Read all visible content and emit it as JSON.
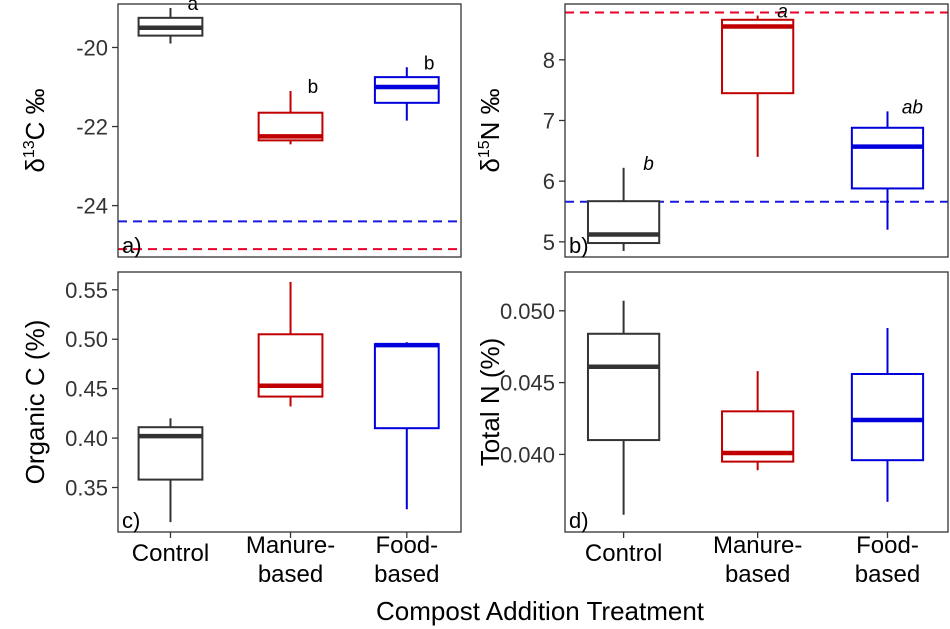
{
  "colors": {
    "Control": "#333333",
    "Manure-based": "#c00000",
    "Food-based": "#0000dd",
    "ref_red": "#e8002a",
    "ref_blue": "#1a1adf"
  },
  "x_axis": {
    "title": "Compost Addition Treatment",
    "categories": [
      {
        "key": "Control",
        "lines": [
          "Control"
        ]
      },
      {
        "key": "Manure-based",
        "lines": [
          "Manure-",
          "based"
        ]
      },
      {
        "key": "Food-based",
        "lines": [
          "Food-",
          "based"
        ]
      }
    ]
  },
  "chart_data": [
    {
      "type": "box",
      "panel": "a)",
      "ylabel": {
        "delta": "δ",
        "sup": "13",
        "element": "C",
        "unit": "‰"
      },
      "ylim": [
        -25.3,
        -18.9
      ],
      "yticks": [
        -24,
        -22,
        -20
      ],
      "reference_lines": [
        {
          "color": "ref_blue",
          "y": -24.4
        },
        {
          "color": "ref_red",
          "y": -25.1
        }
      ],
      "sig_italic": false,
      "boxes": [
        {
          "category": "Control",
          "min": -19.9,
          "q1": -19.7,
          "median": -19.5,
          "q3": -19.25,
          "max": -19.0,
          "sig": "a"
        },
        {
          "category": "Manure-based",
          "min": -22.45,
          "q1": -22.35,
          "median": -22.25,
          "q3": -21.65,
          "max": -21.1,
          "sig": "b"
        },
        {
          "category": "Food-based",
          "min": -21.85,
          "q1": -21.4,
          "median": -21.0,
          "q3": -20.75,
          "max": -20.5,
          "sig": "b"
        }
      ]
    },
    {
      "type": "box",
      "panel": "b)",
      "ylabel": {
        "delta": "δ",
        "sup": "15",
        "element": "N",
        "unit": "‰"
      },
      "ylim": [
        4.75,
        8.92
      ],
      "yticks": [
        5,
        6,
        7,
        8
      ],
      "reference_lines": [
        {
          "color": "ref_red",
          "y": 8.78
        },
        {
          "color": "ref_blue",
          "y": 5.66
        }
      ],
      "sig_italic": true,
      "boxes": [
        {
          "category": "Control",
          "min": 4.85,
          "q1": 4.98,
          "median": 5.12,
          "q3": 5.67,
          "max": 6.22,
          "sig": "b"
        },
        {
          "category": "Manure-based",
          "min": 6.4,
          "q1": 7.45,
          "median": 8.55,
          "q3": 8.66,
          "max": 8.73,
          "sig": "a"
        },
        {
          "category": "Food-based",
          "min": 5.2,
          "q1": 5.88,
          "median": 6.57,
          "q3": 6.88,
          "max": 7.15,
          "sig": "ab"
        }
      ]
    },
    {
      "type": "box",
      "panel": "c)",
      "ylabel": {
        "text": "Organic C (%)"
      },
      "ylim": [
        0.305,
        0.568
      ],
      "yticks": [
        0.35,
        0.4,
        0.45,
        0.5,
        0.55
      ],
      "tick_format": "0.00",
      "boxes": [
        {
          "category": "Control",
          "min": 0.315,
          "q1": 0.358,
          "median": 0.402,
          "q3": 0.411,
          "max": 0.42
        },
        {
          "category": "Manure-based",
          "min": 0.432,
          "q1": 0.442,
          "median": 0.453,
          "q3": 0.505,
          "max": 0.558
        },
        {
          "category": "Food-based",
          "min": 0.328,
          "q1": 0.41,
          "median": 0.494,
          "q3": 0.495,
          "max": 0.497
        }
      ]
    },
    {
      "type": "box",
      "panel": "d)",
      "ylabel": {
        "text": "Total N (%)"
      },
      "ylim": [
        0.0346,
        0.0527
      ],
      "yticks": [
        0.04,
        0.045,
        0.05
      ],
      "tick_format": "0.000",
      "boxes": [
        {
          "category": "Control",
          "min": 0.0358,
          "q1": 0.041,
          "median": 0.0461,
          "q3": 0.0484,
          "max": 0.0507
        },
        {
          "category": "Manure-based",
          "min": 0.0389,
          "q1": 0.0395,
          "median": 0.0401,
          "q3": 0.043,
          "max": 0.0458
        },
        {
          "category": "Food-based",
          "min": 0.0367,
          "q1": 0.0396,
          "median": 0.0424,
          "q3": 0.0456,
          "max": 0.0488
        }
      ]
    }
  ]
}
